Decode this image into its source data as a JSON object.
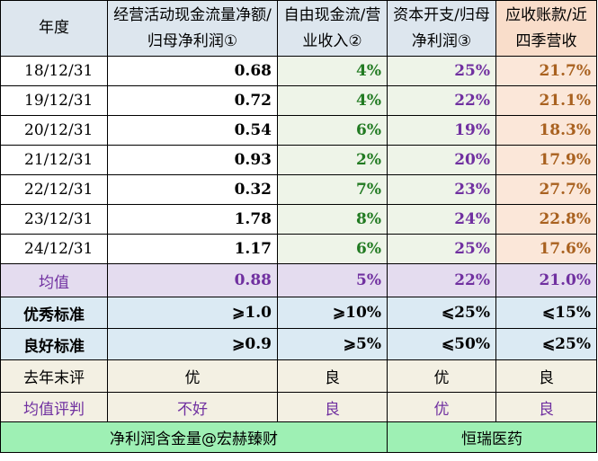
{
  "header": {
    "year": "年度",
    "col1": "经营活动现金流量净额/归母净利润①",
    "col2": "自由现金流/营业收入②",
    "col3": "资本开支/归母净利润③",
    "col4": "应收账款/近四季营收"
  },
  "rows": [
    {
      "date": "18/12/31",
      "c1": "0.68",
      "c2": "4%",
      "c3": "25%",
      "c4": "21.7%"
    },
    {
      "date": "19/12/31",
      "c1": "0.72",
      "c2": "4%",
      "c3": "22%",
      "c4": "21.1%"
    },
    {
      "date": "20/12/31",
      "c1": "0.54",
      "c2": "6%",
      "c3": "19%",
      "c4": "18.3%"
    },
    {
      "date": "21/12/31",
      "c1": "0.93",
      "c2": "2%",
      "c3": "20%",
      "c4": "17.9%"
    },
    {
      "date": "22/12/31",
      "c1": "0.32",
      "c2": "7%",
      "c3": "23%",
      "c4": "27.7%"
    },
    {
      "date": "23/12/31",
      "c1": "1.78",
      "c2": "8%",
      "c3": "24%",
      "c4": "22.8%"
    },
    {
      "date": "24/12/31",
      "c1": "1.17",
      "c2": "6%",
      "c3": "25%",
      "c4": "17.6%"
    }
  ],
  "average": {
    "label": "均值",
    "c1": "0.88",
    "c2": "5%",
    "c3": "22%",
    "c4": "21.0%"
  },
  "excellent": {
    "label": "优秀标准",
    "c1": "⩾1.0",
    "c2": "⩾10%",
    "c3": "⩽25%",
    "c4": "⩽15%"
  },
  "good": {
    "label": "良好标准",
    "c1": "⩾0.9",
    "c2": "⩾5%",
    "c3": "⩽50%",
    "c4": "⩽25%"
  },
  "last_year": {
    "label": "去年末评",
    "c1": "优",
    "c2": "良",
    "c3": "优",
    "c4": "良"
  },
  "avg_rating": {
    "label": "均值评判",
    "c1": "不好",
    "c2": "良",
    "c3": "优",
    "c4": "良"
  },
  "footer": {
    "left": "净利润含金量@宏赫臻财",
    "right": "恒瑞医药"
  }
}
